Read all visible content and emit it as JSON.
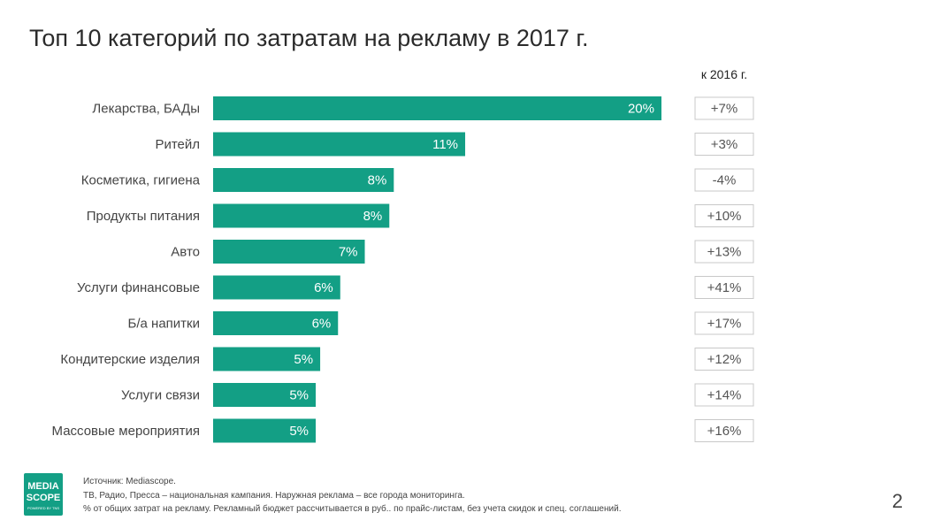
{
  "title": "Топ 10 категорий по затратам на рекламу в 2017 г.",
  "compare_header": "к 2016 г.",
  "colors": {
    "bar": "#139f85",
    "negative": "#d63e8c",
    "positive": "#555555"
  },
  "chart_data": {
    "type": "bar",
    "orientation": "horizontal",
    "title": "Топ 10 категорий по затратам на рекламу в 2017 г.",
    "categories": [
      "Лекарства, БАДы",
      "Ритейл",
      "Косметика, гигиена",
      "Продукты питания",
      "Авто",
      "Услуги финансовые",
      "Б/а напитки",
      "Кондитерские изделия",
      "Услуги связи",
      "Массовые мероприятия"
    ],
    "values": [
      20.1,
      11.3,
      8.1,
      7.9,
      6.8,
      5.7,
      5.6,
      4.8,
      4.6,
      4.6
    ],
    "data_labels": [
      "20%",
      "11%",
      "8%",
      "8%",
      "7%",
      "6%",
      "6%",
      "5%",
      "5%",
      "5%"
    ],
    "change_vs_2016": [
      "+7%",
      "+3%",
      "-4%",
      "+10%",
      "+13%",
      "+41%",
      "+17%",
      "+12%",
      "+14%",
      "+16%"
    ],
    "xlim": [
      0,
      20.1
    ]
  },
  "footer": {
    "logo_text": [
      "MEDIA",
      "SCOPE"
    ],
    "logo_subtext": "POWERED BY TNS",
    "notes": [
      "Источник: Mediascope.",
      "ТВ, Радио, Пресса – национальная кампания. Наружная реклама – все города мониторинга.",
      "% от общих затрат на рекламу. Рекламный бюджет рассчитывается в руб.. по прайс-листам, без учета скидок и спец. соглашений."
    ]
  },
  "page_number": "2"
}
